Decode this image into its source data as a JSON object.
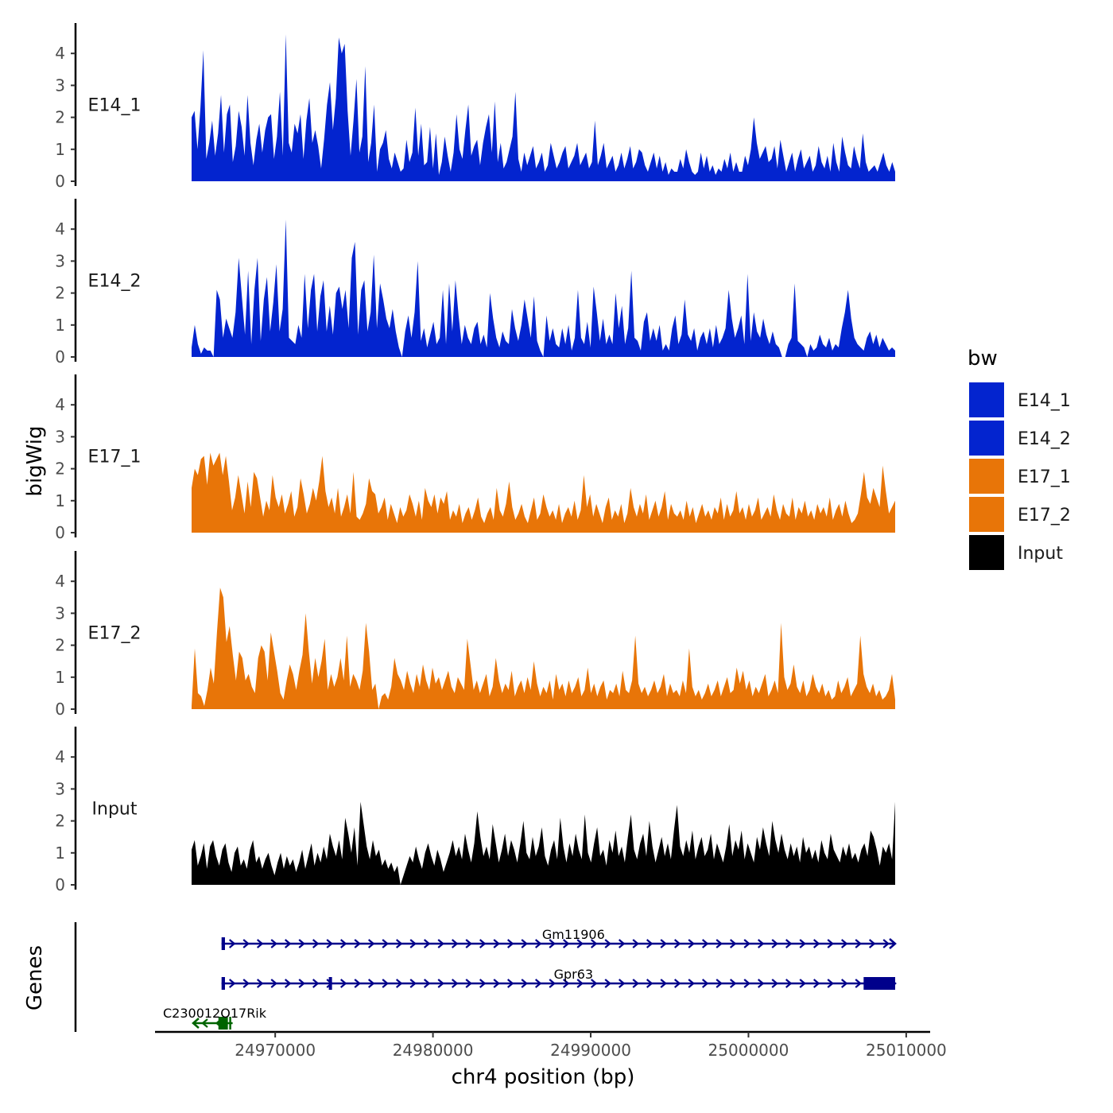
{
  "chart_data": {
    "type": "area",
    "title": "",
    "ylabel": "bigWig",
    "xlabel": "chr4 position (bp)",
    "genes_label": "Genes",
    "ylim": [
      0,
      4.8
    ],
    "y_ticks": [
      "0",
      "1",
      "2",
      "3",
      "4"
    ],
    "x_range": [
      24964700,
      25009300
    ],
    "x_ticks": [
      {
        "value": 24970000,
        "label": "24970000"
      },
      {
        "value": 24980000,
        "label": "24980000"
      },
      {
        "value": 24990000,
        "label": "24990000"
      },
      {
        "value": 25000000,
        "label": "25000000"
      },
      {
        "value": 25010000,
        "label": "25010000"
      }
    ],
    "legend": {
      "title": "bw",
      "position": "right",
      "entries": [
        {
          "label": "E14_1",
          "color": "#0324cf"
        },
        {
          "label": "E14_2",
          "color": "#0324cf"
        },
        {
          "label": "E17_1",
          "color": "#e87508"
        },
        {
          "label": "E17_2",
          "color": "#e87508"
        },
        {
          "label": "Input",
          "color": "#000000"
        }
      ]
    },
    "series": [
      {
        "name": "E14_1",
        "label": "E14_1",
        "color": "#0324cf",
        "values": [
          2.0,
          2.2,
          1.0,
          2.3,
          4.1,
          0.7,
          1.2,
          1.9,
          0.8,
          1.5,
          2.7,
          0.9,
          2.1,
          2.4,
          0.6,
          1.1,
          2.2,
          1.7,
          0.8,
          2.7,
          1.2,
          0.5,
          1.3,
          1.8,
          0.9,
          1.6,
          2.0,
          2.1,
          0.7,
          1.4,
          2.8,
          0.8,
          4.6,
          1.2,
          0.9,
          1.8,
          1.5,
          2.1,
          0.7,
          1.9,
          2.6,
          1.2,
          1.6,
          1.1,
          0.4,
          1.3,
          2.4,
          3.1,
          1.6,
          2.6,
          4.5,
          4.0,
          4.3,
          2.2,
          0.8,
          1.9,
          3.2,
          0.9,
          1.4,
          3.6,
          0.6,
          1.2,
          2.4,
          0.3,
          1.0,
          1.2,
          1.6,
          0.7,
          0.4,
          0.9,
          0.6,
          0.3,
          0.4,
          1.3,
          0.6,
          0.9,
          2.3,
          0.8,
          1.8,
          0.5,
          0.6,
          1.7,
          0.4,
          1.5,
          0.2,
          0.6,
          1.4,
          0.8,
          0.3,
          0.9,
          2.1,
          1.0,
          0.7,
          1.6,
          2.4,
          0.8,
          1.1,
          1.3,
          0.5,
          1.2,
          1.7,
          2.1,
          0.9,
          2.5,
          0.6,
          1.2,
          0.4,
          0.6,
          1.0,
          1.4,
          2.8,
          0.7,
          0.3,
          0.9,
          0.5,
          0.8,
          1.1,
          0.4,
          0.6,
          0.9,
          0.3,
          0.5,
          1.2,
          0.8,
          0.4,
          0.6,
          0.9,
          1.1,
          0.4,
          0.6,
          0.8,
          1.2,
          0.5,
          0.7,
          0.9,
          0.4,
          0.6,
          1.9,
          0.5,
          0.8,
          1.2,
          0.4,
          0.6,
          0.8,
          0.3,
          0.5,
          0.9,
          0.4,
          0.7,
          1.1,
          0.4,
          0.6,
          1.0,
          0.9,
          0.5,
          0.3,
          0.6,
          0.9,
          0.4,
          0.8,
          0.3,
          0.6,
          0.2,
          0.4,
          0.3,
          0.3,
          0.7,
          0.4,
          1.0,
          0.6,
          0.3,
          0.2,
          0.3,
          0.9,
          0.4,
          0.8,
          0.3,
          0.5,
          0.2,
          0.4,
          0.3,
          0.7,
          0.4,
          0.9,
          0.3,
          0.6,
          0.3,
          0.3,
          0.8,
          0.5,
          1.0,
          2.0,
          1.2,
          0.7,
          0.9,
          1.1,
          0.6,
          0.7,
          1.1,
          0.4,
          1.3,
          0.8,
          0.3,
          0.6,
          0.9,
          0.3,
          0.7,
          1.0,
          0.4,
          0.6,
          0.8,
          0.3,
          0.5,
          1.1,
          0.6,
          0.4,
          0.8,
          0.3,
          1.2,
          0.6,
          0.3,
          1.4,
          0.9,
          0.5,
          0.4,
          1.1,
          0.7,
          0.4,
          1.5,
          0.6,
          0.3,
          0.4,
          0.5,
          0.3,
          0.6,
          0.9,
          0.5,
          0.3,
          0.6,
          0.3
        ]
      },
      {
        "name": "E14_2",
        "label": "E14_2",
        "color": "#0324cf",
        "values": [
          0.3,
          1.0,
          0.4,
          0.1,
          0.3,
          0.2,
          0.2,
          0.0,
          2.1,
          1.8,
          0.6,
          1.2,
          0.9,
          0.6,
          1.4,
          3.1,
          1.9,
          0.7,
          2.7,
          0.4,
          2.1,
          3.1,
          0.5,
          1.8,
          2.5,
          0.8,
          1.7,
          2.9,
          0.8,
          1.5,
          4.3,
          0.6,
          0.5,
          0.4,
          1.0,
          0.6,
          2.6,
          0.9,
          2.1,
          2.6,
          0.8,
          1.9,
          2.4,
          0.8,
          1.6,
          0.7,
          2.0,
          2.2,
          1.5,
          2.1,
          0.9,
          3.1,
          3.6,
          0.7,
          2.1,
          2.4,
          0.8,
          1.4,
          3.2,
          0.9,
          2.3,
          1.8,
          1.2,
          0.9,
          1.5,
          0.8,
          0.3,
          0.0,
          0.8,
          1.3,
          0.6,
          1.4,
          3.0,
          0.5,
          0.9,
          0.3,
          0.7,
          1.1,
          0.4,
          0.6,
          2.1,
          0.4,
          2.3,
          0.8,
          2.4,
          1.3,
          0.4,
          1.0,
          0.6,
          0.4,
          0.9,
          1.1,
          0.4,
          0.7,
          0.3,
          2.0,
          1.2,
          0.6,
          0.3,
          0.8,
          0.5,
          0.4,
          1.5,
          0.9,
          0.5,
          1.0,
          1.8,
          1.2,
          0.6,
          1.9,
          0.5,
          0.2,
          0.0,
          1.3,
          0.5,
          0.9,
          0.4,
          0.3,
          0.9,
          0.4,
          1.0,
          0.2,
          0.6,
          2.1,
          0.6,
          0.4,
          1.1,
          0.3,
          2.2,
          1.4,
          0.5,
          1.2,
          0.4,
          0.7,
          0.4,
          2.0,
          0.9,
          1.6,
          0.4,
          0.9,
          2.7,
          0.6,
          0.5,
          0.2,
          1.1,
          1.4,
          0.5,
          0.9,
          0.5,
          1.0,
          0.2,
          0.4,
          0.2,
          0.9,
          1.3,
          0.4,
          0.7,
          1.8,
          0.7,
          0.5,
          0.9,
          0.2,
          0.6,
          0.8,
          0.4,
          0.9,
          0.3,
          1.0,
          0.4,
          0.6,
          0.9,
          2.1,
          1.2,
          0.6,
          0.9,
          1.3,
          0.4,
          2.6,
          0.5,
          1.4,
          0.8,
          0.6,
          1.2,
          0.7,
          0.4,
          0.8,
          0.4,
          0.3,
          0.0,
          0.0,
          0.4,
          0.6,
          2.3,
          0.5,
          0.4,
          0.3,
          0.0,
          0.4,
          0.2,
          0.3,
          0.7,
          0.4,
          0.3,
          0.6,
          0.2,
          0.4,
          0.3,
          0.9,
          1.4,
          2.1,
          1.2,
          0.6,
          0.4,
          0.3,
          0.2,
          0.6,
          0.8,
          0.4,
          0.7,
          0.3,
          0.6,
          0.4,
          0.2,
          0.3,
          0.2
        ]
      },
      {
        "name": "E17_1",
        "label": "E17_1",
        "color": "#e87508",
        "values": [
          1.4,
          2.0,
          1.8,
          2.3,
          2.4,
          1.5,
          2.5,
          2.1,
          2.3,
          2.5,
          1.8,
          2.4,
          1.6,
          0.7,
          1.1,
          1.8,
          1.2,
          0.6,
          1.6,
          0.8,
          1.9,
          1.7,
          1.1,
          0.5,
          1.0,
          0.7,
          1.8,
          1.1,
          0.8,
          1.2,
          0.6,
          0.9,
          1.3,
          0.5,
          0.8,
          1.7,
          1.2,
          0.6,
          0.9,
          1.4,
          1.0,
          1.6,
          2.4,
          1.3,
          0.8,
          1.1,
          0.6,
          1.4,
          0.5,
          0.8,
          1.2,
          0.6,
          1.9,
          0.5,
          0.4,
          0.6,
          0.9,
          1.7,
          1.3,
          1.2,
          0.6,
          0.8,
          1.1,
          0.4,
          0.9,
          0.6,
          0.3,
          0.8,
          0.5,
          0.7,
          1.2,
          0.9,
          0.5,
          1.0,
          0.4,
          1.4,
          1.0,
          0.8,
          1.2,
          0.6,
          1.1,
          0.9,
          1.3,
          0.4,
          0.7,
          0.5,
          0.9,
          0.3,
          0.6,
          0.8,
          0.4,
          0.7,
          1.1,
          0.5,
          0.3,
          0.6,
          0.8,
          0.4,
          1.4,
          0.7,
          0.5,
          0.9,
          1.6,
          0.8,
          0.4,
          0.6,
          0.9,
          0.5,
          0.3,
          0.7,
          1.1,
          0.4,
          0.6,
          1.2,
          0.8,
          0.5,
          0.7,
          0.4,
          0.9,
          0.3,
          0.6,
          0.8,
          0.5,
          1.0,
          0.4,
          0.7,
          1.8,
          0.8,
          1.2,
          0.5,
          0.9,
          0.6,
          0.3,
          0.8,
          1.1,
          0.4,
          0.7,
          0.5,
          0.9,
          0.3,
          0.6,
          1.4,
          0.8,
          0.5,
          0.9,
          0.6,
          1.2,
          0.4,
          0.7,
          1.0,
          0.5,
          0.8,
          1.3,
          0.4,
          0.9,
          0.6,
          0.5,
          0.7,
          0.4,
          1.0,
          0.5,
          0.8,
          0.3,
          0.6,
          0.9,
          0.5,
          0.7,
          0.4,
          0.8,
          0.6,
          1.1,
          0.4,
          0.9,
          0.5,
          0.7,
          1.3,
          0.6,
          0.8,
          0.4,
          0.9,
          0.5,
          0.7,
          1.1,
          0.4,
          0.6,
          0.8,
          0.5,
          1.2,
          0.7,
          0.4,
          0.9,
          0.6,
          0.5,
          1.1,
          0.4,
          0.8,
          0.6,
          1.0,
          0.5,
          0.7,
          0.4,
          0.9,
          0.6,
          0.8,
          0.5,
          1.1,
          0.4,
          0.7,
          0.9,
          0.5,
          1.0,
          0.6,
          0.3,
          0.4,
          0.6,
          1.2,
          1.9,
          1.1,
          0.9,
          1.4,
          1.1,
          0.8,
          2.1,
          1.3,
          0.6,
          0.8,
          1.0
        ]
      },
      {
        "name": "E17_2",
        "label": "E17_2",
        "color": "#e87508",
        "values": [
          0.1,
          1.9,
          0.5,
          0.4,
          0.1,
          0.6,
          1.3,
          0.8,
          2.4,
          3.8,
          3.5,
          2.1,
          2.6,
          1.7,
          0.9,
          1.8,
          1.6,
          0.9,
          1.1,
          0.7,
          0.5,
          1.6,
          2.0,
          1.8,
          0.9,
          2.4,
          1.8,
          1.2,
          0.5,
          0.3,
          0.9,
          1.4,
          1.1,
          0.6,
          1.2,
          1.7,
          3.0,
          1.8,
          0.8,
          1.6,
          1.0,
          1.5,
          2.2,
          0.6,
          1.1,
          0.7,
          1.0,
          1.6,
          0.9,
          2.3,
          0.7,
          1.1,
          0.9,
          0.6,
          1.2,
          2.7,
          1.8,
          0.6,
          0.8,
          0.0,
          0.4,
          0.5,
          0.3,
          0.7,
          1.6,
          1.1,
          0.9,
          0.6,
          1.2,
          0.8,
          0.5,
          1.1,
          0.7,
          1.4,
          0.9,
          0.6,
          1.3,
          0.8,
          1.0,
          0.6,
          0.9,
          1.2,
          0.7,
          0.5,
          1.0,
          0.8,
          0.6,
          2.2,
          1.4,
          0.6,
          0.9,
          0.5,
          0.8,
          1.1,
          0.4,
          0.7,
          1.6,
          0.9,
          0.5,
          0.8,
          0.6,
          1.2,
          0.4,
          0.7,
          0.9,
          0.5,
          1.0,
          0.6,
          1.5,
          0.8,
          0.4,
          0.7,
          0.5,
          0.9,
          0.3,
          1.1,
          0.6,
          0.8,
          0.4,
          0.9,
          0.5,
          0.7,
          1.0,
          0.4,
          0.6,
          1.3,
          0.5,
          0.8,
          0.4,
          0.7,
          0.9,
          0.3,
          0.6,
          0.5,
          0.8,
          0.4,
          1.2,
          0.6,
          0.5,
          0.9,
          2.3,
          0.8,
          0.5,
          0.7,
          0.4,
          0.6,
          0.9,
          0.5,
          0.7,
          1.1,
          0.4,
          0.8,
          0.5,
          0.6,
          0.4,
          0.9,
          0.5,
          1.9,
          0.7,
          0.4,
          0.6,
          0.3,
          0.5,
          0.8,
          0.4,
          0.6,
          0.9,
          0.4,
          0.7,
          1.0,
          0.5,
          0.6,
          1.3,
          0.8,
          1.2,
          0.6,
          0.9,
          0.4,
          0.7,
          0.5,
          0.8,
          1.1,
          0.4,
          0.6,
          0.9,
          0.5,
          2.7,
          1.0,
          0.6,
          0.8,
          1.4,
          0.7,
          0.5,
          0.9,
          0.4,
          0.6,
          1.1,
          0.7,
          0.5,
          0.8,
          0.4,
          0.6,
          0.3,
          0.4,
          0.9,
          0.5,
          0.7,
          1.0,
          0.4,
          0.6,
          0.8,
          2.3,
          1.1,
          0.7,
          0.5,
          0.8,
          0.4,
          0.6,
          0.3,
          0.4,
          0.6,
          1.1,
          0.3
        ]
      },
      {
        "name": "Input",
        "label": "Input",
        "color": "#000000",
        "values": [
          1.1,
          1.4,
          0.6,
          0.9,
          1.3,
          0.5,
          1.2,
          1.4,
          0.9,
          0.6,
          1.1,
          1.3,
          0.7,
          0.4,
          1.0,
          1.2,
          0.6,
          0.8,
          0.5,
          1.1,
          1.4,
          0.7,
          0.9,
          0.5,
          0.8,
          1.0,
          0.6,
          0.3,
          0.7,
          1.0,
          0.5,
          0.9,
          0.6,
          0.8,
          0.4,
          0.7,
          1.1,
          0.5,
          0.9,
          1.3,
          0.6,
          1.0,
          0.7,
          1.2,
          0.8,
          1.6,
          1.2,
          0.9,
          1.4,
          0.8,
          2.1,
          1.6,
          1.0,
          1.8,
          0.6,
          2.6,
          1.9,
          1.2,
          0.8,
          1.4,
          0.9,
          1.1,
          0.6,
          0.8,
          0.5,
          0.7,
          0.4,
          0.6,
          0.0,
          0.3,
          0.6,
          0.9,
          0.7,
          1.2,
          0.8,
          0.5,
          1.0,
          1.3,
          0.9,
          0.6,
          1.1,
          0.8,
          0.4,
          0.7,
          1.0,
          1.4,
          0.9,
          1.2,
          0.8,
          1.6,
          1.1,
          0.7,
          1.3,
          2.3,
          1.5,
          0.9,
          1.2,
          0.8,
          1.9,
          1.3,
          0.7,
          1.1,
          1.6,
          0.9,
          1.4,
          1.1,
          0.7,
          1.3,
          2.0,
          1.0,
          0.8,
          1.5,
          0.9,
          1.2,
          1.8,
          0.9,
          0.6,
          1.1,
          1.4,
          0.8,
          2.1,
          1.2,
          0.7,
          1.3,
          0.9,
          1.6,
          1.1,
          0.8,
          2.2,
          1.0,
          0.7,
          1.3,
          1.8,
          0.9,
          1.1,
          0.6,
          1.4,
          1.0,
          1.7,
          0.9,
          1.2,
          0.7,
          1.5,
          2.2,
          1.1,
          0.8,
          1.3,
          1.6,
          0.9,
          2.0,
          1.2,
          0.7,
          1.1,
          1.5,
          0.9,
          1.3,
          0.8,
          1.7,
          2.5,
          1.2,
          0.9,
          1.4,
          1.0,
          1.7,
          0.8,
          1.2,
          1.5,
          0.9,
          1.1,
          1.6,
          0.8,
          1.3,
          1.0,
          0.7,
          1.2,
          1.9,
          0.9,
          1.4,
          1.1,
          1.7,
          0.8,
          1.3,
          1.0,
          0.7,
          1.5,
          1.1,
          1.8,
          1.3,
          0.9,
          2.0,
          1.4,
          1.0,
          1.6,
          1.1,
          0.8,
          1.3,
          0.9,
          1.2,
          0.7,
          1.5,
          1.0,
          1.2,
          0.8,
          1.1,
          0.7,
          1.4,
          1.0,
          0.8,
          1.6,
          1.1,
          0.9,
          0.7,
          1.2,
          0.9,
          1.3,
          0.8,
          1.0,
          0.7,
          1.1,
          1.3,
          0.9,
          1.7,
          1.5,
          1.1,
          0.6,
          1.2,
          1.0,
          1.3,
          0.8,
          2.6
        ]
      }
    ],
    "genes": [
      {
        "name": "Gm11906",
        "strand": "+",
        "color": "#00008b",
        "start": 24966600,
        "end": 25009300,
        "exons": [
          [
            24966600,
            24966800
          ]
        ]
      },
      {
        "name": "Gpr63",
        "strand": "+",
        "color": "#00008b",
        "start": 24966600,
        "end": 25009300,
        "exons": [
          [
            24966600,
            24966800
          ],
          [
            24973400,
            24973600
          ],
          [
            25007300,
            25009300
          ]
        ]
      },
      {
        "name": "C230012O17Rik",
        "strand": "-",
        "color": "#006400",
        "start": 24964800,
        "end": 24967300,
        "exons": [
          [
            24966400,
            24967000
          ]
        ]
      }
    ]
  }
}
